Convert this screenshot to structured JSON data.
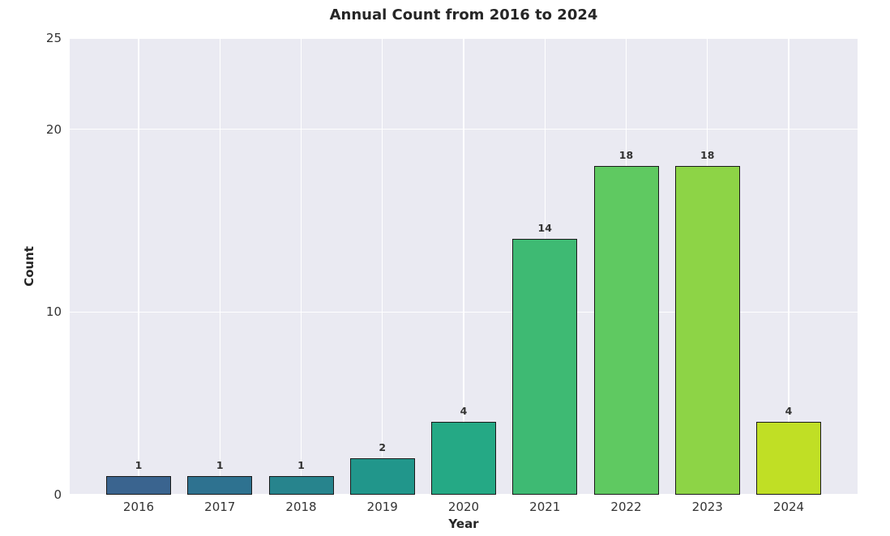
{
  "figure": {
    "background": "#ffffff"
  },
  "chart_data": {
    "type": "bar",
    "title": "Annual Count from 2016 to 2024",
    "xlabel": "Year",
    "ylabel": "Count",
    "categories": [
      "2016",
      "2017",
      "2018",
      "2019",
      "2020",
      "2021",
      "2022",
      "2023",
      "2024"
    ],
    "values": [
      1,
      1,
      1,
      2,
      4,
      14,
      18,
      18,
      4
    ],
    "bar_value_labels": [
      "1",
      "1",
      "1",
      "2",
      "4",
      "14",
      "18",
      "18",
      "4"
    ],
    "bar_colors": [
      "#3a648f",
      "#2e7290",
      "#27848d",
      "#21968b",
      "#25a985",
      "#3eba73",
      "#5fc961",
      "#8dd446",
      "#c0df25"
    ],
    "ylim": [
      0,
      25
    ],
    "yticks": [
      0,
      10,
      20,
      25
    ],
    "ytick_labels": [
      "0",
      "10",
      "20",
      "25"
    ],
    "grid": "on",
    "legend": "none",
    "plot_background": "#eaeaf2",
    "grid_color": "#ffffff",
    "bar_edge_color": "#1a1a1a",
    "text_color": "#262626"
  }
}
